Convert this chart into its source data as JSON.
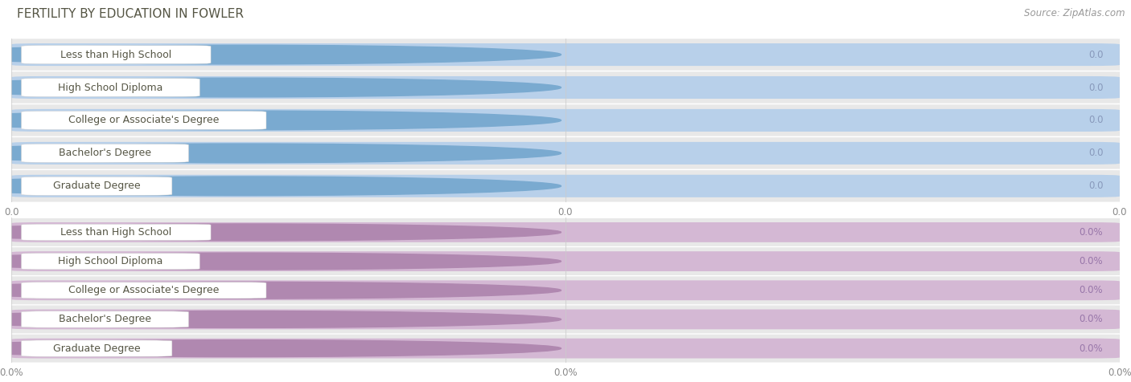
{
  "title": "FERTILITY BY EDUCATION IN FOWLER",
  "source": "Source: ZipAtlas.com",
  "categories": [
    "Less than High School",
    "High School Diploma",
    "College or Associate's Degree",
    "Bachelor's Degree",
    "Graduate Degree"
  ],
  "top_labels": [
    "0.0",
    "0.0",
    "0.0",
    "0.0",
    "0.0"
  ],
  "bottom_labels": [
    "0.0%",
    "0.0%",
    "0.0%",
    "0.0%",
    "0.0%"
  ],
  "top_bar_color": "#b8d0ea",
  "top_bar_dark": "#7aaad0",
  "bottom_bar_color": "#d4b8d4",
  "bottom_bar_dark": "#b088b0",
  "row_bg": "#e8e8e8",
  "bg_color": "#ffffff",
  "text_color": "#555544",
  "val_color_top": "#8899bb",
  "val_color_bot": "#9977aa",
  "tick_color": "#888888",
  "grid_color": "#cccccc",
  "title_fontsize": 11,
  "cat_fontsize": 9,
  "val_fontsize": 8.5,
  "tick_fontsize": 8.5,
  "source_fontsize": 8.5
}
